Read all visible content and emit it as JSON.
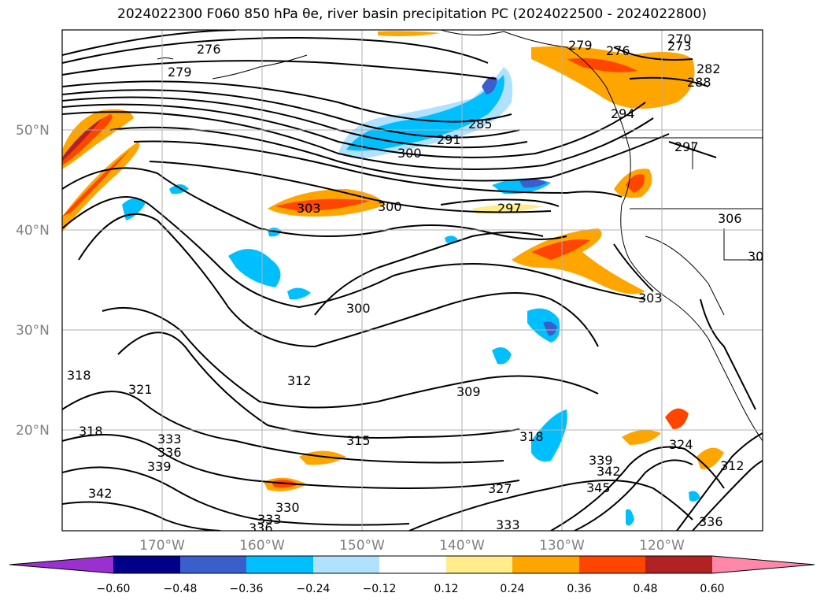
{
  "title": "2024022300 F060 850 hPa θe, river basin precipitation PC (2024022500 - 2024022800)",
  "map": {
    "lon_ticks": [
      "170°W",
      "160°W",
      "150°W",
      "140°W",
      "130°W",
      "120°W"
    ],
    "lat_ticks": [
      "50°N",
      "40°N",
      "30°N",
      "20°N"
    ],
    "contour_labels": [
      "276",
      "279",
      "279",
      "276",
      "270",
      "273",
      "282",
      "288",
      "294",
      "285",
      "291",
      "300",
      "297",
      "303",
      "300",
      "297",
      "306",
      "30",
      "300",
      "303",
      "318",
      "321",
      "318",
      "312",
      "309",
      "315",
      "318",
      "324",
      "312",
      "333",
      "336",
      "339",
      "342",
      "330",
      "333",
      "336",
      "327",
      "339",
      "342",
      "345",
      "333",
      "336"
    ]
  },
  "colorbar": {
    "tick_labels": [
      "−0.60",
      "−0.48",
      "−0.36",
      "−0.24",
      "−0.12",
      "0.12",
      "0.24",
      "0.36",
      "0.48",
      "0.60"
    ],
    "colors": [
      "#9b30d0",
      "#00008b",
      "#3a5fcd",
      "#00bfff",
      "#b0e2ff",
      "#ffffff",
      "#ffec8b",
      "#ffa500",
      "#ff4500",
      "#b22222",
      "#ff88aa"
    ]
  }
}
